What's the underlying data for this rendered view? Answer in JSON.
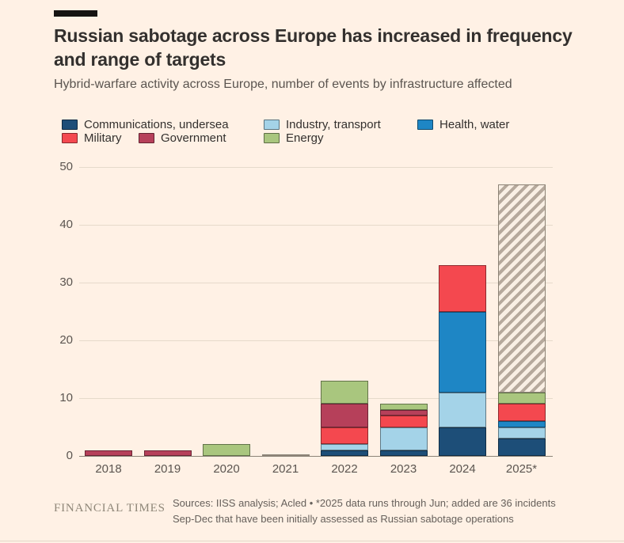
{
  "header": {
    "title": "Russian sabotage across Europe has increased in frequency and range of targets",
    "subtitle": "Hybrid-warfare activity across Europe, number of events by infrastructure affected"
  },
  "legend": {
    "items": [
      {
        "label": "Communications, undersea",
        "color": "#1d4e78"
      },
      {
        "label": "Industry, transport",
        "color": "#a4d3e8"
      },
      {
        "label": "Health, water",
        "color": "#1e86c5"
      },
      {
        "label": "Military",
        "color": "#f4484f"
      },
      {
        "label": "Government",
        "color": "#b6405a"
      },
      {
        "label": "Energy",
        "color": "#a9c67e"
      }
    ]
  },
  "chart_data": {
    "type": "bar",
    "stacked": true,
    "title": "Russian sabotage across Europe has increased in frequency and range of targets",
    "subtitle": "Hybrid-warfare activity across Europe, number of events by infrastructure affected",
    "categories": [
      "2018",
      "2019",
      "2020",
      "2021",
      "2022",
      "2023",
      "2024",
      "2025*"
    ],
    "series": [
      {
        "name": "Communications, undersea",
        "color": "#1d4e78",
        "hatched": false,
        "values": [
          0,
          0,
          0,
          0,
          1,
          1,
          5,
          3
        ]
      },
      {
        "name": "Industry, transport",
        "color": "#a4d3e8",
        "hatched": false,
        "values": [
          0,
          0,
          0,
          0,
          1,
          4,
          6,
          2
        ]
      },
      {
        "name": "Health, water",
        "color": "#1e86c5",
        "hatched": false,
        "values": [
          0,
          0,
          0,
          0,
          0,
          0,
          14,
          1
        ]
      },
      {
        "name": "Military",
        "color": "#f4484f",
        "hatched": false,
        "values": [
          0,
          0,
          0,
          0,
          3,
          2,
          8,
          3
        ]
      },
      {
        "name": "Government",
        "color": "#b6405a",
        "hatched": false,
        "values": [
          1,
          1,
          0,
          0,
          4,
          1,
          0,
          0
        ]
      },
      {
        "name": "Energy",
        "color": "#a9c67e",
        "hatched": false,
        "values": [
          0,
          0,
          2,
          0,
          4,
          1,
          0,
          2
        ]
      },
      {
        "name": "Initially assessed Russian sabotage, Sep-Dec (hatched)",
        "color": "#b6a99c",
        "hatched": true,
        "values": [
          0,
          0,
          0,
          0,
          0,
          0,
          0,
          36
        ]
      }
    ],
    "totals": [
      1,
      1,
      2,
      0,
      13,
      9,
      33,
      47
    ],
    "ylabel": "",
    "xlabel": "",
    "ylim": [
      0,
      50
    ],
    "yticks": [
      0,
      10,
      20,
      30,
      40,
      50
    ],
    "grid": true,
    "legend_position": "top",
    "zero_bar_years": [
      "2021"
    ]
  },
  "footer": {
    "brand": "FINANCIAL TIMES",
    "source_line1": "Sources: IISS analysis; Acled • *2025 data runs through Jun; added are 36 incidents",
    "source_line2": "Sep-Dec that have been initially assessed as Russian sabotage operations"
  }
}
